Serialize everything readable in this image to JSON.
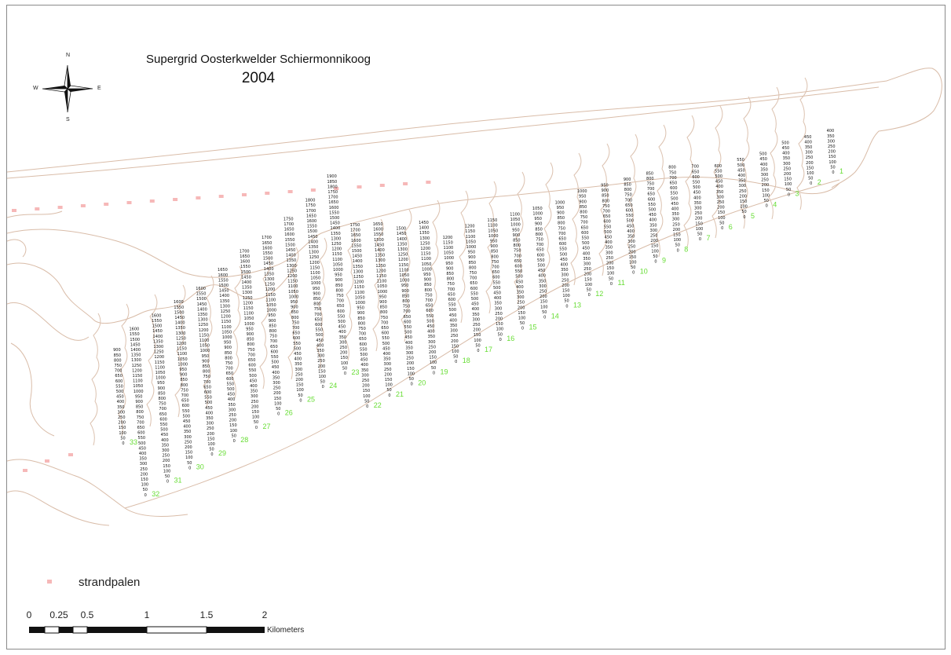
{
  "title": {
    "line1": "Supergrid Oosterkwelder Schiermonnikoog",
    "line2": "2004"
  },
  "compass": {
    "n": "N",
    "e": "E",
    "s": "S",
    "w": "W",
    "icon": "north-arrow-compass-rose"
  },
  "legend": {
    "label": "strandpalen",
    "marker_color": "#f6b8b8"
  },
  "scalebar": {
    "labels": [
      "0",
      "0.25",
      "0.5",
      "1",
      "1.5",
      "2"
    ],
    "unit": "Kilometers"
  },
  "colors": {
    "coastline": "#d9bca8",
    "transect_label": "#66dd33",
    "grid_value": "#111111",
    "strandpalen": "#f6b8b8"
  },
  "transects": {
    "ids": [
      "1",
      "2",
      "3",
      "4",
      "5",
      "6",
      "7",
      "8",
      "9",
      "10",
      "11",
      "12",
      "13",
      "14",
      "15",
      "16",
      "17",
      "18",
      "19",
      "20",
      "21",
      "22",
      "23",
      "24",
      "25",
      "26",
      "27",
      "28",
      "29",
      "30",
      "31",
      "32",
      "33"
    ],
    "max_distance_m": [
      400,
      450,
      500,
      500,
      550,
      600,
      700,
      800,
      850,
      900,
      950,
      1000,
      1000,
      1050,
      1100,
      1150,
      1200,
      1200,
      1450,
      1500,
      1650,
      1750,
      1900,
      1800,
      1750,
      1700,
      1700,
      1650,
      1600,
      1600,
      1600,
      1600,
      900
    ],
    "step_m": 50,
    "base_value": "0"
  }
}
